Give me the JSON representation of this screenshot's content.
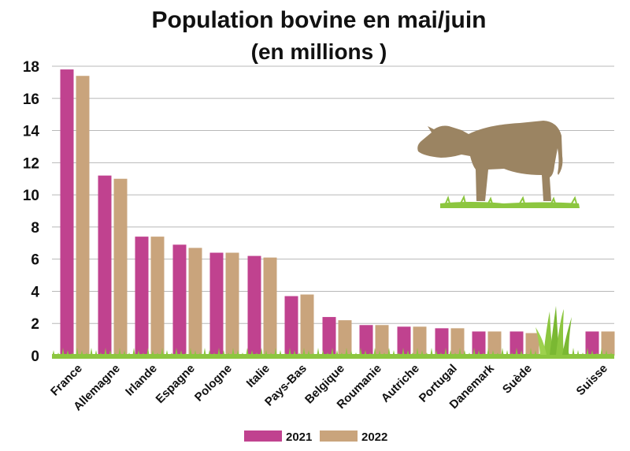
{
  "chart_data": {
    "type": "bar",
    "title": "Population bovine en mai/juin",
    "subtitle": "(en millions )",
    "categories": [
      "France",
      "Allemagne",
      "Irlande",
      "Espagne",
      "Pologne",
      "Italie",
      "Pays-Bas",
      "Belgique",
      "Roumanie",
      "Autriche",
      "Portugal",
      "Danemark",
      "Suède",
      "Suisse"
    ],
    "series": [
      {
        "name": "2021",
        "color": "#c0428f",
        "values": [
          17.8,
          11.2,
          7.4,
          6.9,
          6.4,
          6.2,
          3.7,
          2.4,
          1.9,
          1.8,
          1.7,
          1.5,
          1.5,
          1.5
        ]
      },
      {
        "name": "2022",
        "color": "#c9a47c",
        "values": [
          17.4,
          11.0,
          7.4,
          6.7,
          6.4,
          6.1,
          3.8,
          2.2,
          1.9,
          1.8,
          1.7,
          1.5,
          1.4,
          1.5
        ]
      }
    ],
    "ylim": [
      0,
      18
    ],
    "yticks": [
      0,
      2,
      4,
      6,
      8,
      10,
      12,
      14,
      16,
      18
    ],
    "grid": true,
    "legend": "bottom",
    "grass_color": "#8cc63f",
    "cow_icon": "cow-icon",
    "grass_tuft_icon": "grass-tuft-icon"
  }
}
